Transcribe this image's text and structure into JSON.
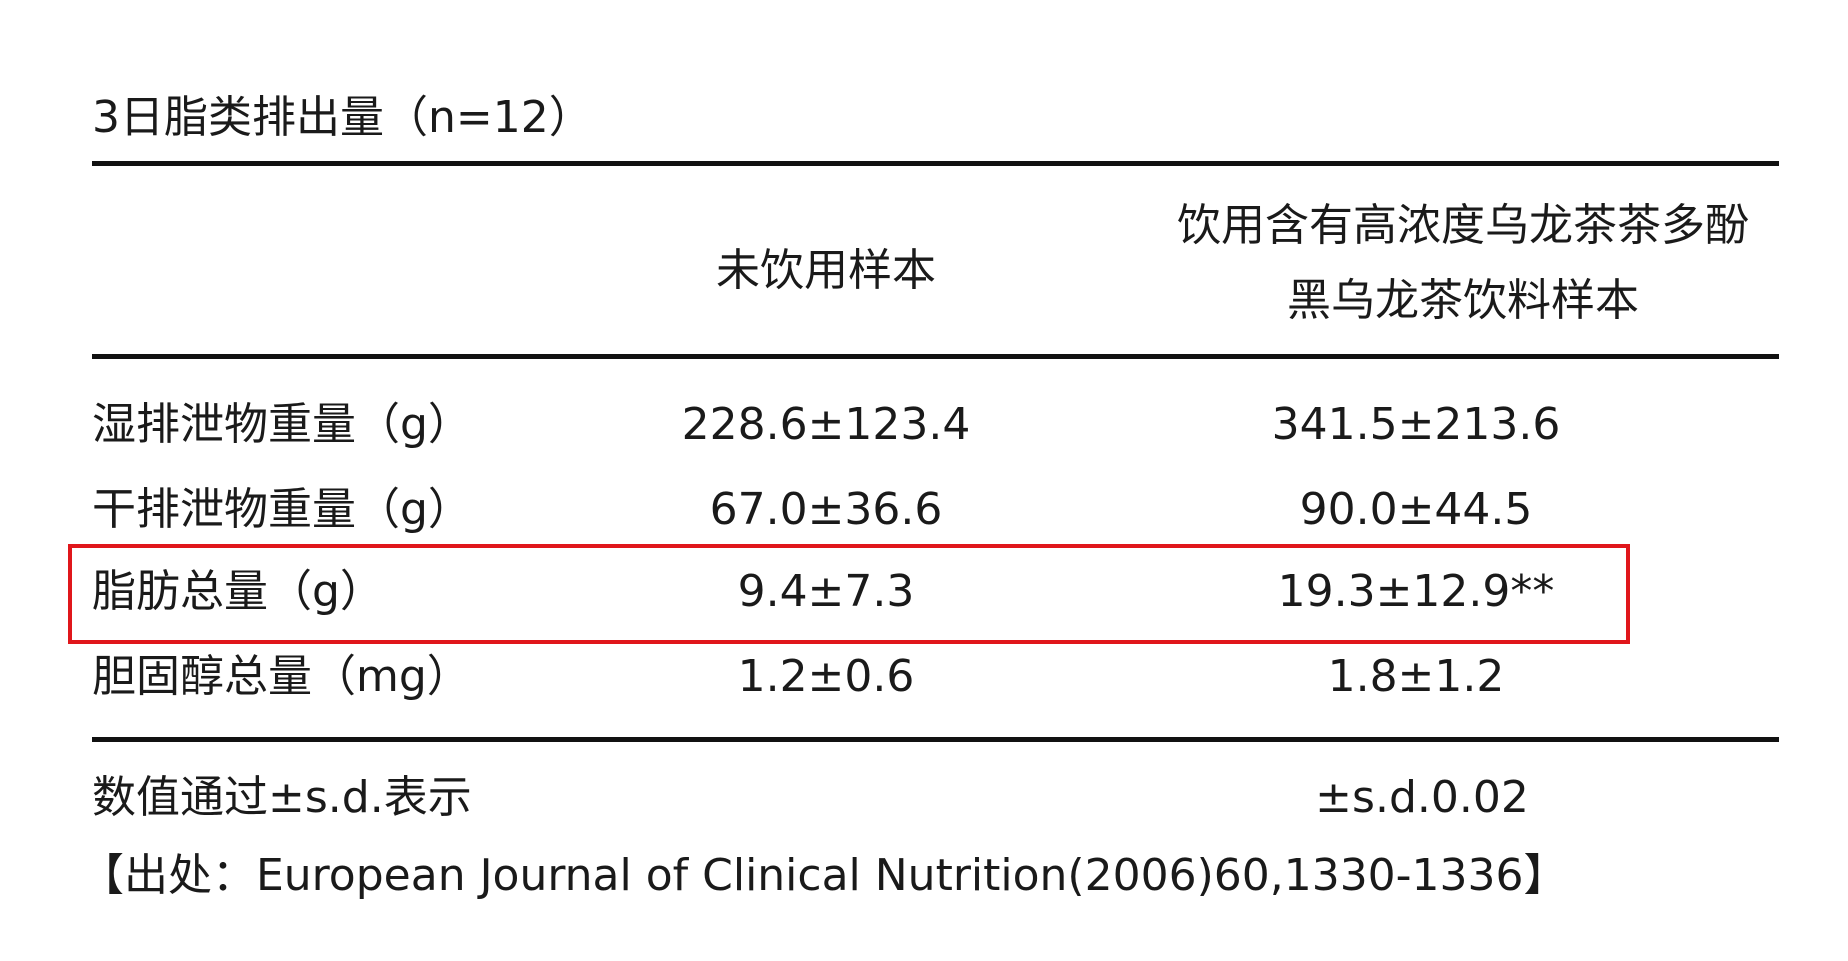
{
  "title": "3日脂类排出量（n=12）",
  "table": {
    "header": [
      "未饮用样本",
      [
        "饮用含有高浓度乌龙茶茶多酚",
        "黑乌龙茶饮料样本"
      ]
    ],
    "rows": [
      [
        "湿排泄物重量（g）",
        "228.6±123.4",
        "341.5±213.6"
      ],
      [
        "干排泄物重量（g）",
        "67.0±36.6",
        "90.0±44.5"
      ],
      [
        "脂肪总量（g）",
        "9.4±7.3",
        "19.3±12.9**"
      ],
      [
        "胆固醇总量（mg）",
        "1.2±0.6",
        "1.8±1.2"
      ]
    ]
  },
  "notes": [
    "数值通过±s.d.表示",
    "±s.d.0.02"
  ],
  "source": "【出处：European Journal of Clinical Nutrition(2006)60,1330-1336】"
}
